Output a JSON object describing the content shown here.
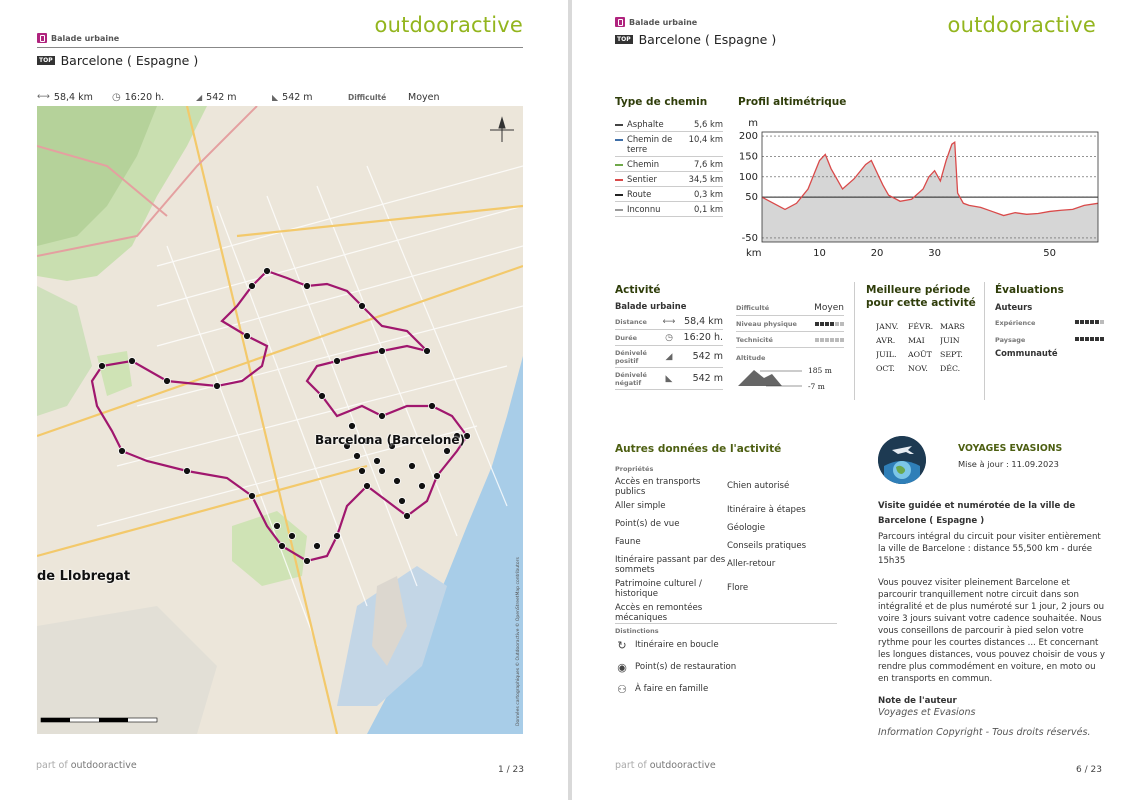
{
  "left_page": {
    "brand": "outdooractive",
    "category": "Balade urbaine",
    "top_badge": "TOP",
    "title": "Barcelone ( Espagne )",
    "stats": {
      "distance": "58,4 km",
      "duration": "16:20 h.",
      "ascent": "542 m",
      "descent": "542 m",
      "difficulty_label": "Difficulté",
      "difficulty_value": "Moyen"
    },
    "map": {
      "city_label": "Barcelona (Barcelone)",
      "place_label": "de Llobregat"
    },
    "footer_prefix": "part of",
    "footer_brand": "outdooractive",
    "page_number": "1 / 23"
  },
  "right_page": {
    "brand": "outdooractive",
    "category": "Balade urbaine",
    "top_badge": "TOP",
    "title": "Barcelone ( Espagne )",
    "path_type": {
      "title": "Type de chemin",
      "rows": [
        {
          "name": "Asphalte",
          "value": "5,6 km",
          "color": "#444444"
        },
        {
          "name": "Chemin de terre",
          "value": "10,4 km",
          "color": "#3f6fa8"
        },
        {
          "name": "Chemin",
          "value": "7,6 km",
          "color": "#6fa84a"
        },
        {
          "name": "Sentier",
          "value": "34,5 km",
          "color": "#d94a4a"
        },
        {
          "name": "Route",
          "value": "0,3 km",
          "color": "#222222"
        },
        {
          "name": "Inconnu",
          "value": "0,1 km",
          "color": "#999999"
        }
      ]
    },
    "profile": {
      "title": "Profil altimétrique",
      "y_unit": "m",
      "y_ticks": [
        "200",
        "150",
        "100",
        "50",
        "-50"
      ],
      "x_unit": "km",
      "x_ticks": [
        "10",
        "20",
        "30",
        "50"
      ]
    },
    "chart_data": {
      "type": "area",
      "title": "Profil altimétrique",
      "xlabel": "km",
      "ylabel": "m",
      "ylim": [
        -60,
        210
      ],
      "xlim": [
        0,
        58.4
      ],
      "x": [
        0,
        2,
        4,
        6,
        8,
        9,
        10,
        11,
        12,
        13,
        14,
        16,
        18,
        19,
        20,
        21,
        22,
        24,
        26,
        28,
        29,
        30,
        31,
        32,
        33,
        33.5,
        34,
        35,
        36,
        38,
        40,
        42,
        44,
        46,
        48,
        50,
        52,
        54,
        56,
        58.4
      ],
      "y": [
        50,
        35,
        20,
        35,
        70,
        105,
        140,
        155,
        120,
        95,
        70,
        95,
        130,
        140,
        110,
        80,
        55,
        40,
        45,
        70,
        100,
        115,
        90,
        140,
        180,
        185,
        60,
        35,
        30,
        25,
        15,
        5,
        12,
        8,
        10,
        15,
        18,
        20,
        30,
        35
      ],
      "grid": true
    },
    "activity": {
      "title": "Activité",
      "subtitle": "Balade urbaine",
      "rows": [
        {
          "label": "Distance",
          "icon": "⟷",
          "value": "58,4 km"
        },
        {
          "label": "Durée",
          "icon": "◷",
          "value": "16:20 h."
        },
        {
          "label": "Dénivelé positif",
          "icon": "◢",
          "value": "542 m"
        },
        {
          "label": "Dénivelé négatif",
          "icon": "◣",
          "value": "542 m"
        }
      ],
      "difficulty_label": "Difficulté",
      "difficulty_value": "Moyen",
      "physical_label": "Niveau physique",
      "physical_level": 4,
      "technical_label": "Technicité",
      "technical_level": 0,
      "altitude_label": "Altitude",
      "alt_max": "185 m",
      "alt_min": "-7 m"
    },
    "best_period": {
      "title": "Meilleure période pour cette activité",
      "months": [
        "JANV.",
        "FÉVR.",
        "MARS",
        "AVR.",
        "MAI",
        "JUIN",
        "JUIL.",
        "AOÛT",
        "SEPT.",
        "OCT.",
        "NOV.",
        "DÉC."
      ]
    },
    "ratings": {
      "title": "Évaluations",
      "authors_label": "Auteurs",
      "experience_label": "Expérience",
      "experience_level": 5,
      "landscape_label": "Paysage",
      "landscape_level": 6,
      "community_label": "Communauté"
    },
    "other_data": {
      "title": "Autres données de l'activité",
      "properties_label": "Propriétés",
      "properties": [
        [
          "Accès en transports publics",
          "Chien autorisé"
        ],
        [
          "Aller simple",
          "Itinéraire à étapes"
        ],
        [
          "Point(s) de vue",
          "Géologie"
        ],
        [
          "Faune",
          "Conseils pratiques"
        ],
        [
          "Itinéraire passant par des sommets",
          "Aller-retour"
        ],
        [
          "Patrimoine culturel / historique",
          "Flore"
        ],
        [
          "Accès en remontées mécaniques",
          ""
        ]
      ],
      "distinctions_label": "Distinctions",
      "distinctions": [
        {
          "icon": "loop-icon",
          "label": "Itinéraire en boucle"
        },
        {
          "icon": "restaurant-icon",
          "label": "Point(s) de restauration"
        },
        {
          "icon": "family-icon",
          "label": "À faire en famille"
        }
      ]
    },
    "author": {
      "name": "VOYAGES EVASIONS",
      "updated": "Mise à jour : 11.09.2023",
      "heading": "Visite guidée et numérotée de la ville de Barcelone ( Espagne )",
      "para1": "Parcours intégral du circuit pour visiter entièrement la ville de Barcelone : distance 55,500 km - durée 15h35",
      "para2": "Vous pouvez visiter pleinement Barcelone et parcourir tranquillement notre circuit dans son intégralité et de plus numéroté sur 1 jour, 2 jours ou voire 3 jours suivant votre cadence souhaitée. Nous vous conseillons de parcourir à pied selon votre rythme pour les courtes distances ... Et concernant les longues distances, vous pouvez choisir de vous y rendre plus commodément en voiture, en moto ou en transports en commun.",
      "note_label": "Note de l'auteur",
      "note_value": "Voyages et Evasions",
      "copyright": "Information Copyright - Tous droits réservés."
    },
    "footer_prefix": "part of",
    "footer_brand": "outdooractive",
    "page_number": "6 / 23"
  }
}
